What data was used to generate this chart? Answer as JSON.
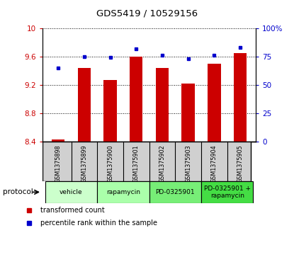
{
  "title": "GDS5419 / 10529156",
  "samples": [
    "GSM1375898",
    "GSM1375899",
    "GSM1375900",
    "GSM1375901",
    "GSM1375902",
    "GSM1375903",
    "GSM1375904",
    "GSM1375905"
  ],
  "red_values": [
    8.43,
    9.44,
    9.27,
    9.6,
    9.44,
    9.22,
    9.5,
    9.65
  ],
  "blue_values": [
    65,
    75,
    74,
    82,
    76,
    73,
    76,
    83
  ],
  "ylim_left": [
    8.4,
    10.0
  ],
  "ylim_right": [
    0,
    100
  ],
  "yticks_left": [
    8.4,
    8.8,
    9.2,
    9.6,
    10.0
  ],
  "yticks_right": [
    0,
    25,
    50,
    75,
    100
  ],
  "ytick_labels_left": [
    "8.4",
    "8.8",
    "9.2",
    "9.6",
    "10"
  ],
  "ytick_labels_right": [
    "0",
    "25",
    "50",
    "75",
    "100%"
  ],
  "protocols": [
    {
      "label": "vehicle",
      "span": [
        0,
        1
      ],
      "color": "#ccffcc"
    },
    {
      "label": "rapamycin",
      "span": [
        2,
        3
      ],
      "color": "#aaffaa"
    },
    {
      "label": "PD-0325901",
      "span": [
        4,
        5
      ],
      "color": "#77ee77"
    },
    {
      "label": "PD-0325901 +\nrapamycin",
      "span": [
        6,
        7
      ],
      "color": "#44dd44"
    }
  ],
  "bar_color": "#cc0000",
  "dot_color": "#0000cc",
  "bar_width": 0.5,
  "background_color": "#ffffff",
  "grid_color": "#000000",
  "label_color_red": "#cc0000",
  "label_color_blue": "#0000cc",
  "legend_red": "transformed count",
  "legend_blue": "percentile rank within the sample",
  "gsm_box_color": "#d0d0d0",
  "protocol_label": "protocol"
}
